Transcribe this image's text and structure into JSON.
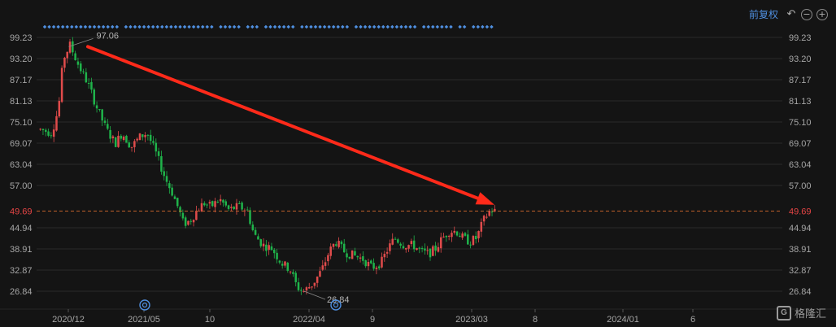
{
  "toolbar": {
    "adjust_label": "前复权",
    "undo_icon": "undo-icon",
    "zoom_out_icon": "zoom-out-icon",
    "zoom_in_icon": "zoom-in-icon"
  },
  "watermark": {
    "text": "格隆汇",
    "logo_icon": "gelonghui-logo"
  },
  "colors": {
    "background": "#141414",
    "up": "#e04b4b",
    "down": "#1fb34a",
    "arrow": "#ff2a1a",
    "price_line": "#c0602a",
    "dots": "#4f8fe0",
    "grid": "#2a2a2a"
  },
  "chart_data": {
    "type": "candlestick",
    "y_ticks": [
      "99.23",
      "93.20",
      "87.17",
      "81.13",
      "75.10",
      "69.07",
      "63.04",
      "57.00",
      "44.94",
      "38.91",
      "32.87",
      "26.84"
    ],
    "ylim": [
      26.84,
      99.23
    ],
    "x_labels": [
      "2020/12",
      "2021/05",
      "10",
      "2022/04",
      "9",
      "2023/03",
      "8",
      "2024/01",
      "6"
    ],
    "current_price": "49.69",
    "annotations": {
      "high": "97.06",
      "low": "26.84"
    },
    "trend_arrow": {
      "from_value": 97.06,
      "to_value": 51.5,
      "direction": "down"
    },
    "price_path": [
      [
        0,
        73
      ],
      [
        0.025,
        72
      ],
      [
        0.04,
        79
      ],
      [
        0.05,
        93
      ],
      [
        0.065,
        97.06
      ],
      [
        0.085,
        91
      ],
      [
        0.105,
        86
      ],
      [
        0.125,
        79
      ],
      [
        0.145,
        73
      ],
      [
        0.165,
        69
      ],
      [
        0.18,
        72
      ],
      [
        0.2,
        68
      ],
      [
        0.22,
        71
      ],
      [
        0.235,
        72
      ],
      [
        0.255,
        66
      ],
      [
        0.275,
        59
      ],
      [
        0.29,
        55
      ],
      [
        0.305,
        50
      ],
      [
        0.315,
        46
      ],
      [
        0.33,
        47
      ],
      [
        0.345,
        50
      ],
      [
        0.36,
        52
      ],
      [
        0.375,
        51
      ],
      [
        0.395,
        53
      ],
      [
        0.415,
        50
      ],
      [
        0.435,
        51
      ],
      [
        0.455,
        50
      ],
      [
        0.47,
        43
      ],
      [
        0.49,
        40
      ],
      [
        0.51,
        39
      ],
      [
        0.53,
        35
      ],
      [
        0.55,
        33
      ],
      [
        0.565,
        28
      ],
      [
        0.58,
        26.84
      ],
      [
        0.6,
        29
      ],
      [
        0.62,
        33
      ],
      [
        0.635,
        38
      ],
      [
        0.65,
        41
      ],
      [
        0.67,
        38
      ],
      [
        0.69,
        37
      ],
      [
        0.71,
        36
      ],
      [
        0.73,
        33.5
      ],
      [
        0.75,
        35
      ],
      [
        0.765,
        39
      ],
      [
        0.78,
        42
      ],
      [
        0.8,
        40
      ],
      [
        0.82,
        40
      ],
      [
        0.84,
        38
      ],
      [
        0.855,
        37.5
      ],
      [
        0.87,
        39
      ],
      [
        0.885,
        42
      ],
      [
        0.9,
        44
      ],
      [
        0.915,
        44
      ],
      [
        0.93,
        42
      ],
      [
        0.945,
        41
      ],
      [
        0.96,
        42
      ],
      [
        0.975,
        47
      ],
      [
        0.99,
        50
      ],
      [
        1,
        49.69
      ]
    ],
    "event_markers": [
      "2021/05",
      "2022/04"
    ],
    "grid": true
  }
}
